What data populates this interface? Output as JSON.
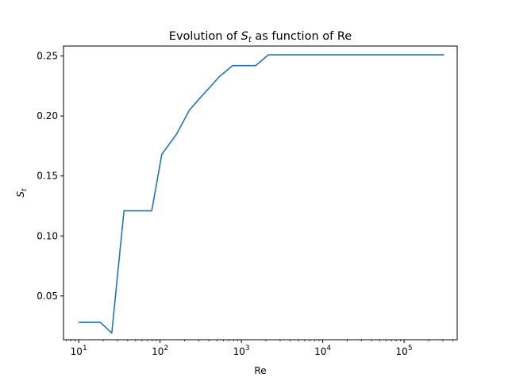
{
  "chart_data": {
    "type": "line",
    "title_prefix": "Evolution of ",
    "title_symbol": "S",
    "title_subscript": "t",
    "title_suffix": " as function of Re",
    "xlabel": "Re",
    "ylabel_symbol": "S",
    "ylabel_subscript": "t",
    "x_scale": "log",
    "xlim": [
      6.5,
      450000
    ],
    "ylim": [
      0.0135,
      0.2583
    ],
    "grid": false,
    "x_major_ticks": [
      {
        "value": 10,
        "base": "10",
        "exp": "1"
      },
      {
        "value": 100,
        "base": "10",
        "exp": "2"
      },
      {
        "value": 1000,
        "base": "10",
        "exp": "3"
      },
      {
        "value": 10000,
        "base": "10",
        "exp": "4"
      },
      {
        "value": 100000,
        "base": "10",
        "exp": "5"
      }
    ],
    "y_ticks": [
      {
        "value": 0.05,
        "label": "0.05"
      },
      {
        "value": 0.1,
        "label": "0.10"
      },
      {
        "value": 0.15,
        "label": "0.15"
      },
      {
        "value": 0.2,
        "label": "0.20"
      },
      {
        "value": 0.25,
        "label": "0.25"
      }
    ],
    "series": [
      {
        "color": "#1f77b4",
        "x": [
          10,
          18.5,
          25.5,
          36,
          79,
          105,
          160,
          230,
          320,
          540,
          780,
          1500,
          2150,
          10000,
          100000,
          310000
        ],
        "y": [
          0.028,
          0.028,
          0.019,
          0.121,
          0.121,
          0.168,
          0.185,
          0.205,
          0.216,
          0.233,
          0.242,
          0.242,
          0.251,
          0.251,
          0.251,
          0.251
        ]
      }
    ]
  }
}
